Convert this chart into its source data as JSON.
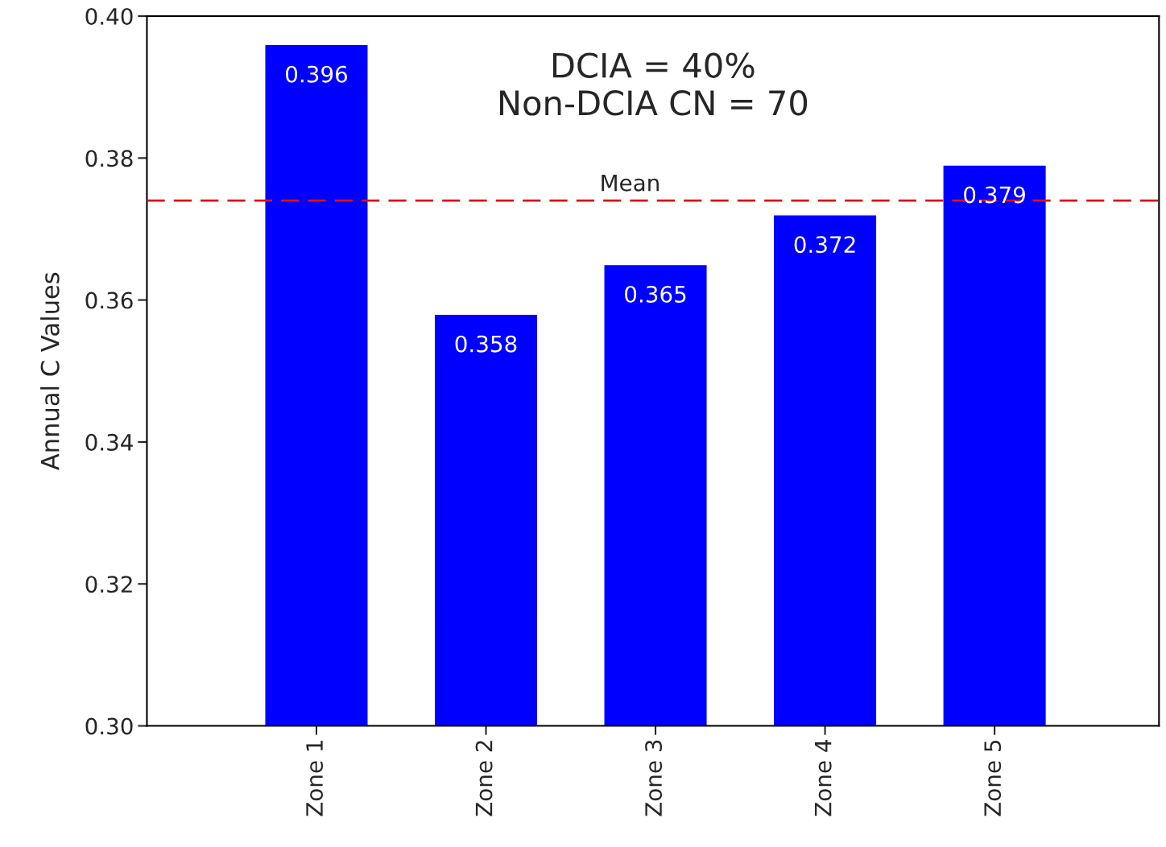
{
  "chart_data": {
    "type": "bar",
    "ylabel": "Annual C Values",
    "categories": [
      "Zone 1",
      "Zone 2",
      "Zone 3",
      "Zone 4",
      "Zone 5"
    ],
    "values": [
      0.396,
      0.358,
      0.365,
      0.372,
      0.379
    ],
    "color": "#0000ff",
    "data_labels": true,
    "ylim": [
      0.3,
      0.4
    ],
    "yticks": [
      {
        "value": 0.3,
        "label": "0.30"
      },
      {
        "value": 0.32,
        "label": "0.32"
      },
      {
        "value": 0.34,
        "label": "0.34"
      },
      {
        "value": 0.36,
        "label": "0.36"
      },
      {
        "value": 0.38,
        "label": "0.38"
      },
      {
        "value": 0.4,
        "label": "0.40"
      }
    ],
    "ref_lines": [
      {
        "axis": "y",
        "value": 0.374,
        "label": "Mean",
        "color": "#dd1111",
        "line_style": "dashed"
      }
    ],
    "annotations": [
      "DCIA = 40%\nNon-DCIA CN = 70"
    ],
    "grid": false,
    "legend": false
  }
}
